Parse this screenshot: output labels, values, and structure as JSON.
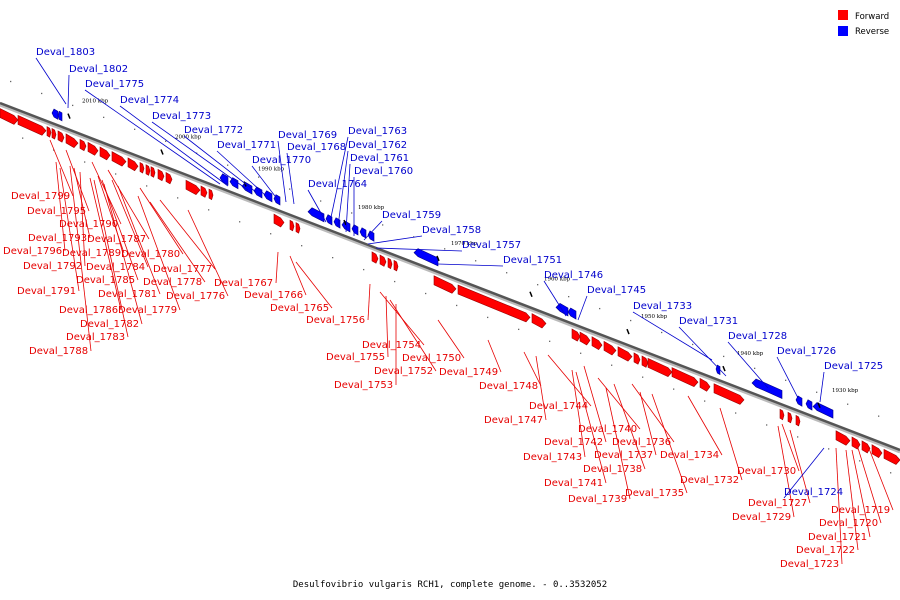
{
  "caption": "Desulfovibrio vulgaris RCH1, complete genome. - 0..3532052",
  "legend": [
    {
      "label": "Forward",
      "color": "#ff0000"
    },
    {
      "label": "Reverse",
      "color": "#0000ff"
    }
  ],
  "colors": {
    "forward": "#ff0000",
    "reverse": "#0000ff",
    "forward_label": "#e60000",
    "reverse_label": "#0000cc",
    "axis": "#555555"
  },
  "ticks": [
    "2010 kbp",
    "2000 kbp",
    "1990 kbp",
    "1980 kbp",
    "1970 kbp",
    "1960 kbp",
    "1950 kbp",
    "1940 kbp",
    "1930 kbp"
  ],
  "forward_genes": [
    "Deval_1799",
    "Deval_1795",
    "Deval_1790",
    "Deval_1793",
    "Deval_1787",
    "Deval_1796",
    "Deval_1789",
    "Deval_1780",
    "Deval_1792",
    "Deval_1784",
    "Deval_1777",
    "Deval_1785",
    "Deval_1778",
    "Deval_1791",
    "Deval_1781",
    "Deval_1776",
    "Deval_1786",
    "Deval_1779",
    "Deval_1782",
    "Deval_1783",
    "Deval_1788",
    "Deval_1767",
    "Deval_1766",
    "Deval_1765",
    "Deval_1756",
    "Deval_1754",
    "Deval_1755",
    "Deval_1752",
    "Deval_1753",
    "Deval_1750",
    "Deval_1749",
    "Deval_1748",
    "Deval_1744",
    "Deval_1747",
    "Deval_1740",
    "Deval_1742",
    "Deval_1736",
    "Deval_1743",
    "Deval_1737",
    "Deval_1734",
    "Deval_1738",
    "Deval_1741",
    "Deval_1732",
    "Deval_1739",
    "Deval_1735",
    "Deval_1730",
    "Deval_1727",
    "Deval_1729",
    "Deval_1719",
    "Deval_1720",
    "Deval_1721",
    "Deval_1722",
    "Deval_1723"
  ],
  "reverse_genes": [
    "Deval_1803",
    "Deval_1802",
    "Deval_1775",
    "Deval_1774",
    "Deval_1773",
    "Deval_1772",
    "Deval_1771",
    "Deval_1769",
    "Deval_1768",
    "Deval_1770",
    "Deval_1763",
    "Deval_1762",
    "Deval_1761",
    "Deval_1760",
    "Deval_1764",
    "Deval_1759",
    "Deval_1758",
    "Deval_1757",
    "Deval_1751",
    "Deval_1746",
    "Deval_1745",
    "Deval_1733",
    "Deval_1731",
    "Deval_1728",
    "Deval_1726",
    "Deval_1725",
    "Deval_1724"
  ]
}
